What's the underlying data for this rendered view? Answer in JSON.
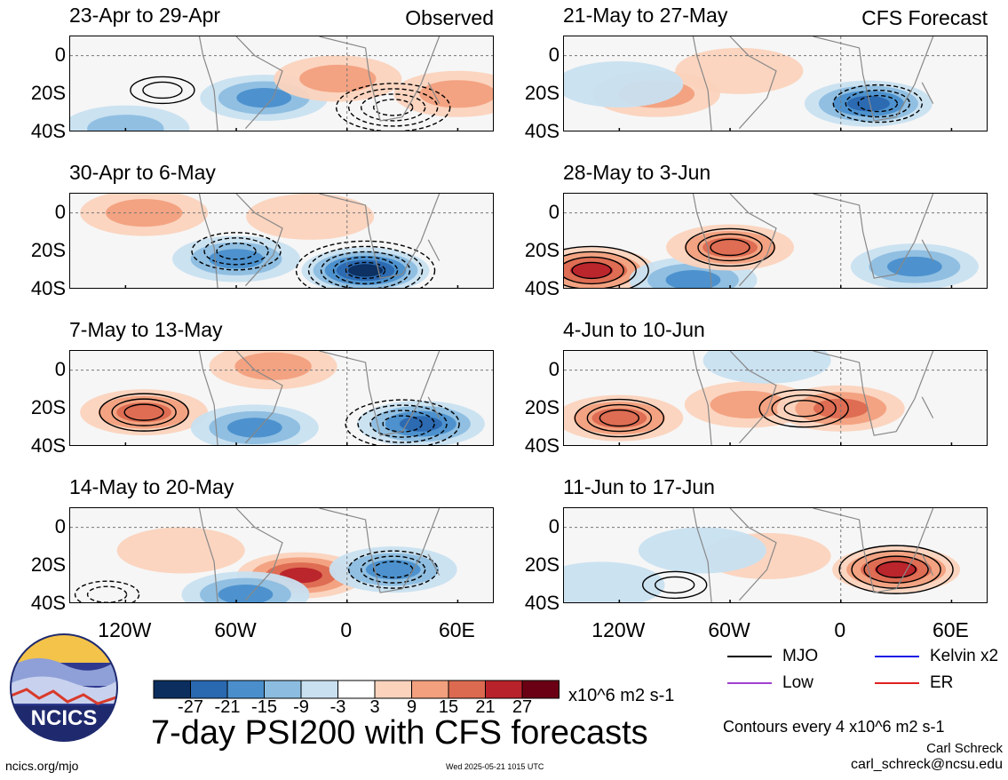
{
  "main_title": "7-day PSI200 with CFS forecasts",
  "units": "x10^6 m2 s-1",
  "contour_note": "Contours every 4 x10^6 m2 s-1",
  "author": "Carl Schreck",
  "email": "carl_schreck@ncsu.edu",
  "site": "ncics.org/mjo",
  "timestamp": "Wed 2025-05-21 1015 UTC",
  "logo_text": "NCICS",
  "columns": {
    "left_tag": "Observed",
    "right_tag": "CFS Forecast"
  },
  "legend": [
    {
      "label": "MJO",
      "color": "#000000"
    },
    {
      "label": "Kelvin x2",
      "color": "#1a1ae6"
    },
    {
      "label": "Low",
      "color": "#a040d0"
    },
    {
      "label": "ER",
      "color": "#e02020"
    }
  ],
  "colorbar": {
    "colors": [
      "#0b2e5e",
      "#2a68b0",
      "#4a8fcc",
      "#8cbde0",
      "#c8e0f0",
      "#ffffff",
      "#fbd3bd",
      "#f2a07e",
      "#dc6a50",
      "#b8222a",
      "#6b0014"
    ],
    "labels": [
      "-27",
      "-21",
      "-15",
      "-9",
      "-3",
      "3",
      "9",
      "15",
      "21",
      "27"
    ]
  },
  "axes": {
    "y_ticks": [
      "0",
      "20S",
      "40S"
    ],
    "x_ticks": [
      "120W",
      "60W",
      "0",
      "60E"
    ]
  },
  "chart_data": [
    {
      "type": "heatmap",
      "panel": "obs-1",
      "title": "23-Apr to 29-Apr",
      "tag": "Observed",
      "field": "PSI200 anomaly",
      "ylim": [
        "10N",
        "40S"
      ],
      "xlim": [
        "150W",
        "80E"
      ],
      "features": [
        {
          "lon": -45,
          "lat": -22,
          "value": -18
        },
        {
          "lon": -120,
          "lat": -38,
          "value": -12
        },
        {
          "lon": -5,
          "lat": -12,
          "value": 9
        },
        {
          "lon": 60,
          "lat": -20,
          "value": 10
        }
      ],
      "contours": [
        {
          "lon": 25,
          "lat": -27,
          "value": -16,
          "kind": "MJO"
        },
        {
          "lon": -100,
          "lat": -18,
          "value": 8,
          "kind": "MJO"
        }
      ]
    },
    {
      "type": "heatmap",
      "panel": "obs-2",
      "title": "30-Apr to 6-May",
      "field": "PSI200 anomaly",
      "features": [
        {
          "lon": -60,
          "lat": -24,
          "value": -18
        },
        {
          "lon": 10,
          "lat": -30,
          "value": -27
        },
        {
          "lon": -110,
          "lat": 0,
          "value": 12
        },
        {
          "lon": -20,
          "lat": -2,
          "value": 8
        }
      ],
      "contours": [
        {
          "lon": 10,
          "lat": -30,
          "value": -20,
          "kind": "MJO"
        },
        {
          "lon": -60,
          "lat": -20,
          "value": -12,
          "kind": "MJO"
        }
      ]
    },
    {
      "type": "heatmap",
      "panel": "obs-3",
      "title": "7-May to 13-May",
      "field": "PSI200 anomaly",
      "features": [
        {
          "lon": -110,
          "lat": -22,
          "value": 20
        },
        {
          "lon": -50,
          "lat": -30,
          "value": -18
        },
        {
          "lon": 40,
          "lat": -28,
          "value": -24
        },
        {
          "lon": -40,
          "lat": 2,
          "value": 9
        }
      ],
      "contours": [
        {
          "lon": -110,
          "lat": -22,
          "value": 12,
          "kind": "MJO"
        },
        {
          "lon": 30,
          "lat": -28,
          "value": -16,
          "kind": "MJO"
        }
      ]
    },
    {
      "type": "heatmap",
      "panel": "obs-4",
      "title": "14-May to 20-May",
      "field": "PSI200 anomaly",
      "features": [
        {
          "lon": -25,
          "lat": -25,
          "value": 21
        },
        {
          "lon": 25,
          "lat": -22,
          "value": -18
        },
        {
          "lon": -55,
          "lat": -35,
          "value": -15
        },
        {
          "lon": -90,
          "lat": -12,
          "value": 6
        }
      ],
      "contours": [
        {
          "lon": 25,
          "lat": -22,
          "value": -12,
          "kind": "MJO"
        },
        {
          "lon": -130,
          "lat": -35,
          "value": -8,
          "kind": "MJO"
        }
      ]
    },
    {
      "type": "heatmap",
      "panel": "fcst-1",
      "title": "21-May to 27-May",
      "tag": "CFS Forecast",
      "field": "PSI200 anomaly",
      "features": [
        {
          "lon": 15,
          "lat": -25,
          "value": -21
        },
        {
          "lon": -100,
          "lat": -20,
          "value": 10
        },
        {
          "lon": -55,
          "lat": -8,
          "value": 6
        },
        {
          "lon": -120,
          "lat": -15,
          "value": -6
        }
      ],
      "contours": [
        {
          "lon": 20,
          "lat": -25,
          "value": -12,
          "kind": "MJO"
        }
      ]
    },
    {
      "type": "heatmap",
      "panel": "fcst-2",
      "title": "28-May to 3-Jun",
      "field": "PSI200 anomaly",
      "features": [
        {
          "lon": -135,
          "lat": -30,
          "value": 24
        },
        {
          "lon": -80,
          "lat": -35,
          "value": -20
        },
        {
          "lon": -60,
          "lat": -18,
          "value": 15
        },
        {
          "lon": 40,
          "lat": -28,
          "value": -18
        }
      ],
      "contours": [
        {
          "lon": -135,
          "lat": -30,
          "value": 16,
          "kind": "MJO"
        },
        {
          "lon": -60,
          "lat": -18,
          "value": 12,
          "kind": "MJO"
        }
      ]
    },
    {
      "type": "heatmap",
      "panel": "fcst-3",
      "title": "4-Jun to 10-Jun",
      "field": "PSI200 anomaly",
      "features": [
        {
          "lon": -120,
          "lat": -25,
          "value": 20
        },
        {
          "lon": -50,
          "lat": -18,
          "value": 12
        },
        {
          "lon": 0,
          "lat": -20,
          "value": 15
        },
        {
          "lon": -40,
          "lat": 5,
          "value": -6
        }
      ],
      "contours": [
        {
          "lon": -20,
          "lat": -20,
          "value": 12,
          "kind": "MJO"
        },
        {
          "lon": -120,
          "lat": -25,
          "value": 12,
          "kind": "MJO"
        }
      ]
    },
    {
      "type": "heatmap",
      "panel": "fcst-4",
      "title": "11-Jun to 17-Jun",
      "field": "PSI200 anomaly",
      "features": [
        {
          "lon": 30,
          "lat": -22,
          "value": 21
        },
        {
          "lon": -40,
          "lat": -15,
          "value": 8
        },
        {
          "lon": -75,
          "lat": -12,
          "value": -8
        },
        {
          "lon": -130,
          "lat": -30,
          "value": -6
        }
      ],
      "contours": [
        {
          "lon": 30,
          "lat": -22,
          "value": 16,
          "kind": "MJO"
        },
        {
          "lon": -90,
          "lat": -30,
          "value": 8,
          "kind": "MJO"
        }
      ]
    }
  ]
}
